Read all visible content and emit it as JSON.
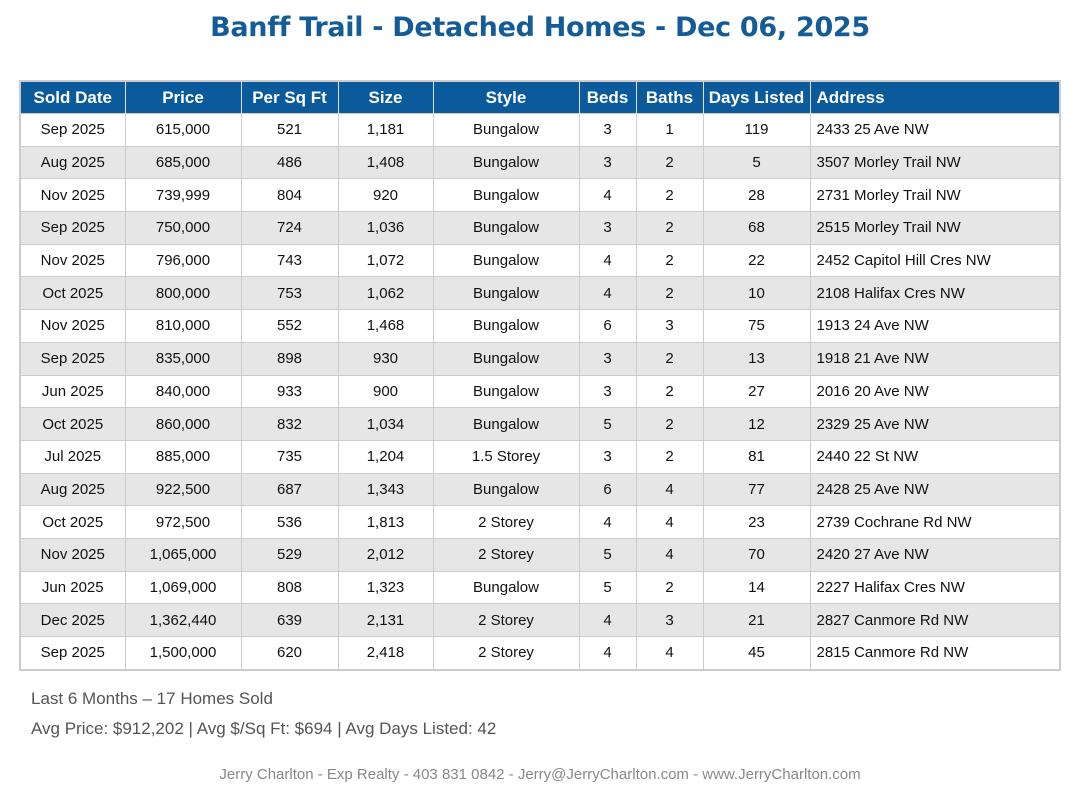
{
  "header": {
    "title": "Banff Trail - Detached Homes - Dec 06, 2025"
  },
  "table": {
    "headers": [
      "Sold Date",
      "Price",
      "Per Sq Ft",
      "Size",
      "Style",
      "Beds",
      "Baths",
      "Days Listed",
      "Address"
    ],
    "rows": [
      [
        "Sep 2025",
        "615,000",
        "521",
        "1,181",
        "Bungalow",
        "3",
        "1",
        "119",
        "2433 25 Ave NW"
      ],
      [
        "Aug 2025",
        "685,000",
        "486",
        "1,408",
        "Bungalow",
        "3",
        "2",
        "5",
        "3507 Morley Trail NW"
      ],
      [
        "Nov 2025",
        "739,999",
        "804",
        "920",
        "Bungalow",
        "4",
        "2",
        "28",
        "2731 Morley Trail NW"
      ],
      [
        "Sep 2025",
        "750,000",
        "724",
        "1,036",
        "Bungalow",
        "3",
        "2",
        "68",
        "2515 Morley Trail NW"
      ],
      [
        "Nov 2025",
        "796,000",
        "743",
        "1,072",
        "Bungalow",
        "4",
        "2",
        "22",
        "2452 Capitol Hill Cres NW"
      ],
      [
        "Oct 2025",
        "800,000",
        "753",
        "1,062",
        "Bungalow",
        "4",
        "2",
        "10",
        "2108 Halifax Cres NW"
      ],
      [
        "Nov 2025",
        "810,000",
        "552",
        "1,468",
        "Bungalow",
        "6",
        "3",
        "75",
        "1913 24 Ave NW"
      ],
      [
        "Sep 2025",
        "835,000",
        "898",
        "930",
        "Bungalow",
        "3",
        "2",
        "13",
        "1918 21 Ave NW"
      ],
      [
        "Jun 2025",
        "840,000",
        "933",
        "900",
        "Bungalow",
        "3",
        "2",
        "27",
        "2016 20 Ave NW"
      ],
      [
        "Oct 2025",
        "860,000",
        "832",
        "1,034",
        "Bungalow",
        "5",
        "2",
        "12",
        "2329 25 Ave NW"
      ],
      [
        "Jul 2025",
        "885,000",
        "735",
        "1,204",
        "1.5 Storey",
        "3",
        "2",
        "81",
        "2440 22 St NW"
      ],
      [
        "Aug 2025",
        "922,500",
        "687",
        "1,343",
        "Bungalow",
        "6",
        "4",
        "77",
        "2428 25 Ave NW"
      ],
      [
        "Oct 2025",
        "972,500",
        "536",
        "1,813",
        "2 Storey",
        "4",
        "4",
        "23",
        "2739 Cochrane Rd NW"
      ],
      [
        "Nov 2025",
        "1,065,000",
        "529",
        "2,012",
        "2 Storey",
        "5",
        "4",
        "70",
        "2420 27 Ave NW"
      ],
      [
        "Jun 2025",
        "1,069,000",
        "808",
        "1,323",
        "Bungalow",
        "5",
        "2",
        "14",
        "2227 Halifax Cres NW"
      ],
      [
        "Dec 2025",
        "1,362,440",
        "639",
        "2,131",
        "2 Storey",
        "4",
        "3",
        "21",
        "2827 Canmore Rd NW"
      ],
      [
        "Sep 2025",
        "1,500,000",
        "620",
        "2,418",
        "2 Storey",
        "4",
        "4",
        "45",
        "2815 Canmore Rd NW"
      ]
    ]
  },
  "summary": {
    "line1": "Last 6 Months – 17 Homes Sold",
    "line2": "Avg Price: $912,202 | Avg $/Sq Ft: $694 | Avg Days Listed: 42"
  },
  "footer": {
    "contact": "Jerry Charlton - Exp Realty - 403 831 0842 - Jerry@JerryCharlton.com - www.JerryCharlton.com"
  }
}
